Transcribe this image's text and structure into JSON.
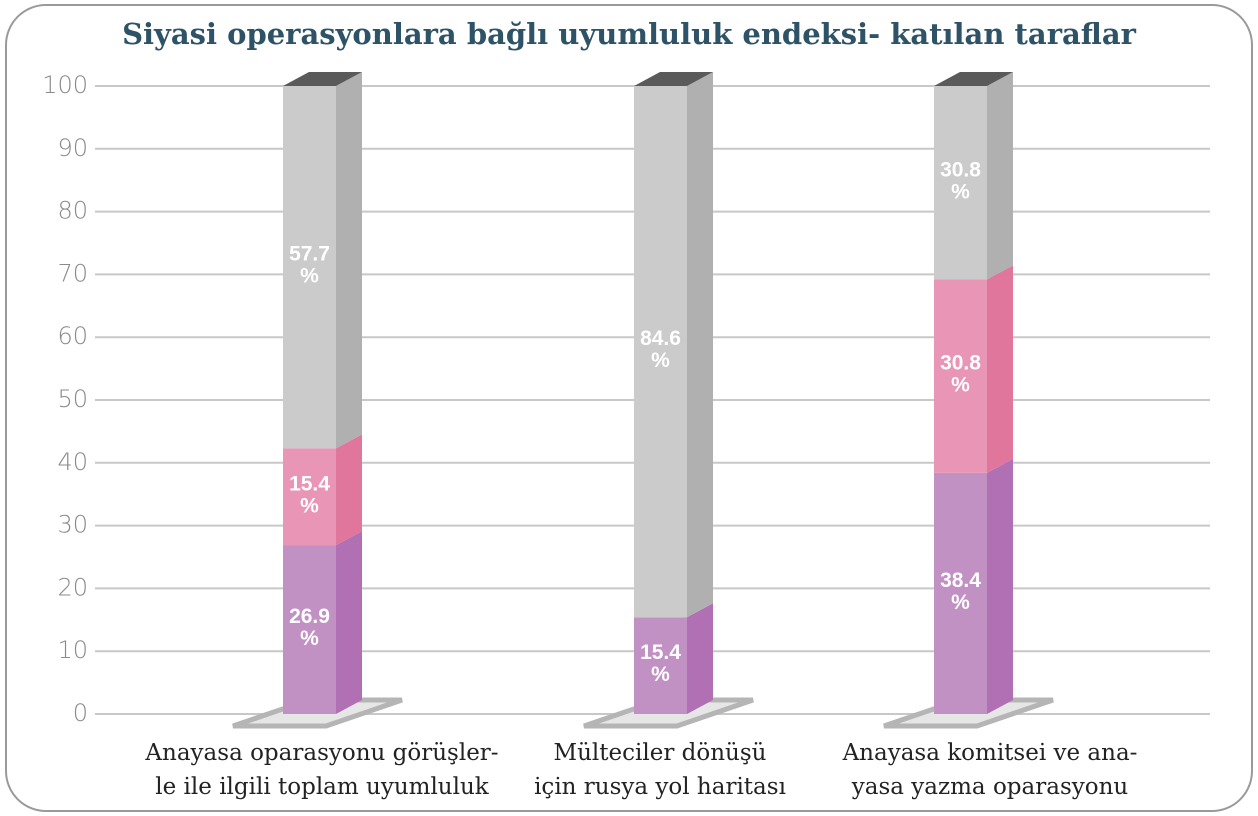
{
  "chart_data": {
    "type": "bar3d_stacked",
    "title": "Siyasi operasyonlara bağlı uyumluluk endeksi- katılan taraflar",
    "categories": [
      [
        "Anayasa oparasyonu görüşler-",
        "le ile ilgili toplam uyumluluk"
      ],
      [
        "Mülteciler dönüşü",
        "için rusya yol haritası"
      ],
      [
        "Anayasa  komitsei ve ana-",
        "yasa yazma oparasyonu"
      ]
    ],
    "series": [
      {
        "color": "#c291c4",
        "side_color": "#b070b3",
        "values": [
          26.9,
          15.4,
          38.4
        ],
        "value_labels": [
          [
            "26.9",
            "%"
          ],
          [
            "15.4",
            "%"
          ],
          [
            "38.4",
            "%"
          ]
        ]
      },
      {
        "color": "#e895b6",
        "side_color": "#e0769c",
        "values": [
          15.4,
          null,
          30.8
        ],
        "value_labels": [
          [
            "15.4",
            "%"
          ],
          null,
          [
            "30.8",
            "%"
          ]
        ]
      },
      {
        "color": "#cbcbcb",
        "side_color": "#b0b0b0",
        "values": [
          57.7,
          84.6,
          30.8
        ],
        "value_labels": [
          [
            "57.7",
            "%"
          ],
          [
            "84.6",
            "%"
          ],
          [
            "30.8",
            "%"
          ]
        ]
      }
    ],
    "top_color": "#5a5a5a",
    "ylim": [
      0,
      100
    ],
    "yticks": [
      0,
      10,
      20,
      30,
      40,
      50,
      60,
      70,
      80,
      90,
      100
    ],
    "grid": true
  }
}
